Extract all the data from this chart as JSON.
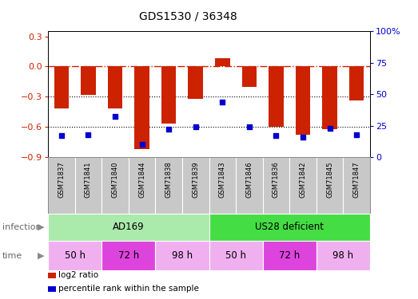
{
  "title": "GDS1530 / 36348",
  "samples": [
    "GSM71837",
    "GSM71841",
    "GSM71840",
    "GSM71844",
    "GSM71838",
    "GSM71839",
    "GSM71843",
    "GSM71846",
    "GSM71836",
    "GSM71842",
    "GSM71845",
    "GSM71847"
  ],
  "log2_ratio": [
    -0.42,
    -0.28,
    -0.42,
    -0.82,
    -0.57,
    -0.32,
    0.08,
    -0.2,
    -0.6,
    -0.68,
    -0.62,
    -0.34
  ],
  "percentile_rank": [
    17,
    18,
    32,
    10,
    22,
    24,
    44,
    24,
    17,
    16,
    23,
    18
  ],
  "bar_color": "#cc2200",
  "dot_color": "#0000cc",
  "ylim_left": [
    -0.9,
    0.35
  ],
  "ylim_right": [
    0,
    100
  ],
  "yticks_left": [
    0.3,
    0.0,
    -0.3,
    -0.6,
    -0.9
  ],
  "yticks_right": [
    100,
    75,
    50,
    25,
    0
  ],
  "ytick_right_labels": [
    "100%",
    "75",
    "50",
    "25",
    "0"
  ],
  "infection_labels": [
    {
      "label": "AD169",
      "start": 0,
      "end": 6,
      "color": "#aaeaaa"
    },
    {
      "label": "US28 deficient",
      "start": 6,
      "end": 12,
      "color": "#44dd44"
    }
  ],
  "time_groups": [
    {
      "label": "50 h",
      "start": 0,
      "end": 2,
      "color": "#f0b0f0"
    },
    {
      "label": "72 h",
      "start": 2,
      "end": 4,
      "color": "#dd44dd"
    },
    {
      "label": "98 h",
      "start": 4,
      "end": 6,
      "color": "#f0b0f0"
    },
    {
      "label": "50 h",
      "start": 6,
      "end": 8,
      "color": "#f0b0f0"
    },
    {
      "label": "72 h",
      "start": 8,
      "end": 10,
      "color": "#dd44dd"
    },
    {
      "label": "98 h",
      "start": 10,
      "end": 12,
      "color": "#f0b0f0"
    }
  ],
  "infection_label": "infection",
  "time_label": "time",
  "legend_log2": "log2 ratio",
  "legend_pct": "percentile rank within the sample",
  "bar_width": 0.55,
  "sample_box_color": "#c8c8c8",
  "sample_box_border": "#888888"
}
